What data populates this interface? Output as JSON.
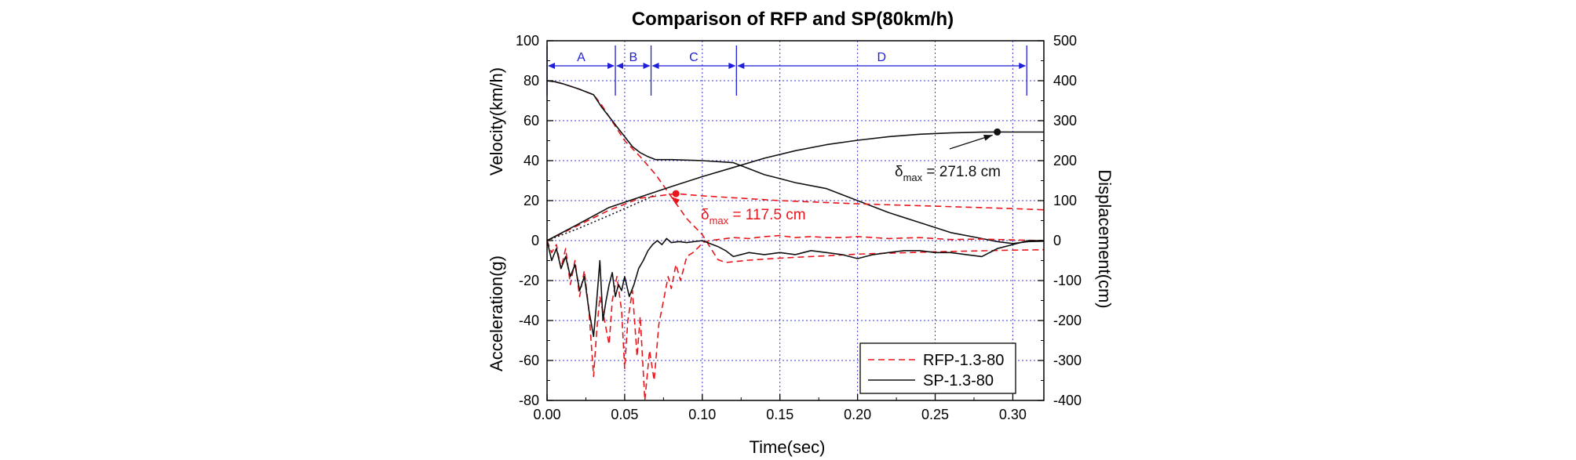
{
  "chart_data": {
    "type": "line",
    "title": "Comparison of RFP and SP(80km/h)",
    "xlabel": "Time(sec)",
    "ylabel_left_top": "Velocity(km/h)",
    "ylabel_left_bottom": "Acceleration(g)",
    "ylabel_right": "Displacement(cm)",
    "xlim": [
      0,
      0.32
    ],
    "ylim_left": [
      -80,
      100
    ],
    "ylim_right": [
      -400,
      500
    ],
    "xticks": [
      0.0,
      0.05,
      0.1,
      0.15,
      0.2,
      0.25,
      0.3
    ],
    "xtick_labels": [
      "0.00",
      "0.05",
      "0.10",
      "0.15",
      "0.20",
      "0.25",
      "0.30"
    ],
    "yticks_left": [
      100,
      80,
      60,
      40,
      20,
      0,
      -20,
      -40,
      -60,
      -80
    ],
    "ytick_labels_left": [
      "100",
      "80",
      "60",
      "40",
      "20",
      "0",
      "-20",
      "-40",
      "-60",
      "-80"
    ],
    "yticks_right": [
      500,
      400,
      300,
      200,
      100,
      0,
      -100,
      -200,
      -300,
      -400
    ],
    "ytick_labels_right": [
      "500",
      "400",
      "300",
      "200",
      "100",
      "0",
      "-100",
      "-200",
      "-300",
      "-400"
    ],
    "grid": true,
    "legend_position": "bottom-right",
    "colors": {
      "rfp": "#e8161c",
      "sp": "#111111",
      "phase": "#1f1fd8",
      "grid": "#3a3ad0"
    },
    "phases": [
      {
        "label": "A",
        "start": 0.0,
        "end": 0.044
      },
      {
        "label": "B",
        "start": 0.044,
        "end": 0.067
      },
      {
        "label": "C",
        "start": 0.067,
        "end": 0.122
      },
      {
        "label": "D",
        "start": 0.122,
        "end": 0.309
      }
    ],
    "annotations": [
      {
        "series": "SP-1.3-80",
        "delta": "δ",
        "subscript": "max",
        "text": " = 271.8 cm",
        "x": 0.29,
        "y_right": 271.8
      },
      {
        "series": "RFP-1.3-80",
        "delta": "δ",
        "subscript": "max",
        "text": " = 117.5 cm",
        "x": 0.083,
        "y_right": 117.5
      }
    ],
    "series": [
      {
        "name": "RFP-1.3-80",
        "quantity": "velocity",
        "axis": "left",
        "style": "dashed",
        "x": [
          0.0,
          0.005,
          0.01,
          0.02,
          0.03,
          0.035,
          0.04,
          0.045,
          0.05,
          0.06,
          0.07,
          0.08,
          0.09,
          0.1,
          0.11,
          0.115,
          0.13,
          0.15,
          0.18,
          0.2,
          0.25,
          0.3,
          0.32
        ],
        "y": [
          80,
          79.5,
          78.5,
          76,
          73,
          68,
          62,
          56,
          50,
          42,
          33,
          22,
          11,
          3,
          -9.5,
          -11,
          -9.8,
          -8.8,
          -7.6,
          -6.8,
          -5.6,
          -4.8,
          -4.6
        ]
      },
      {
        "name": "SP-1.3-80",
        "quantity": "velocity",
        "axis": "left",
        "style": "solid",
        "x": [
          0.0,
          0.005,
          0.01,
          0.02,
          0.03,
          0.035,
          0.04,
          0.045,
          0.05,
          0.055,
          0.06,
          0.065,
          0.07,
          0.08,
          0.1,
          0.12,
          0.13,
          0.14,
          0.15,
          0.16,
          0.18,
          0.2,
          0.22,
          0.24,
          0.26,
          0.28,
          0.29,
          0.3,
          0.31,
          0.32
        ],
        "y": [
          80,
          79.5,
          78.5,
          76,
          73,
          67,
          62,
          57,
          52,
          47,
          44,
          42,
          40.5,
          40.5,
          40,
          39,
          36,
          33,
          31,
          29,
          26,
          20,
          14,
          9,
          4,
          1,
          -0.5,
          -1.5,
          -0.5,
          -0.3
        ]
      },
      {
        "name": "RFP-1.3-80",
        "quantity": "displacement",
        "axis": "right",
        "style": "dashed",
        "x": [
          0.0,
          0.02,
          0.04,
          0.06,
          0.083,
          0.1,
          0.15,
          0.2,
          0.25,
          0.3,
          0.32
        ],
        "y": [
          0,
          38,
          76,
          106,
          117.5,
          112,
          100,
          92,
          86,
          80,
          77
        ]
      },
      {
        "name": "SP-1.3-80",
        "quantity": "displacement",
        "axis": "right",
        "style": "solid",
        "x": [
          0.0,
          0.02,
          0.04,
          0.06,
          0.08,
          0.1,
          0.12,
          0.14,
          0.16,
          0.18,
          0.2,
          0.22,
          0.24,
          0.26,
          0.28,
          0.29,
          0.3,
          0.32
        ],
        "y": [
          0,
          41,
          83,
          109,
          135,
          160,
          183,
          206,
          225,
          240,
          251,
          260,
          266,
          269.5,
          271.3,
          271.8,
          271.6,
          271.5
        ]
      },
      {
        "name": "SP-1.3-80",
        "quantity": "displacement (reference)",
        "axis": "right",
        "style": "dotted",
        "x": [
          0.0,
          0.02,
          0.04,
          0.06,
          0.07
        ],
        "y": [
          0,
          30,
          63,
          97,
          115
        ]
      },
      {
        "name": "RFP-1.3-80",
        "quantity": "acceleration",
        "axis": "left",
        "style": "dashed",
        "x": [
          0.0,
          0.003,
          0.006,
          0.009,
          0.012,
          0.015,
          0.018,
          0.021,
          0.024,
          0.027,
          0.03,
          0.032,
          0.034,
          0.037,
          0.04,
          0.042,
          0.045,
          0.048,
          0.05,
          0.052,
          0.055,
          0.058,
          0.06,
          0.063,
          0.066,
          0.069,
          0.072,
          0.075,
          0.078,
          0.08,
          0.083,
          0.086,
          0.09,
          0.094,
          0.098,
          0.1,
          0.105,
          0.11,
          0.12,
          0.13,
          0.14,
          0.15,
          0.16,
          0.17,
          0.18,
          0.19,
          0.2,
          0.22,
          0.24,
          0.26,
          0.28,
          0.3,
          0.32
        ],
        "y": [
          0,
          -6,
          -2,
          -14,
          -4,
          -22,
          -10,
          -28,
          -15,
          -35,
          -68,
          -45,
          -28,
          -40,
          -52,
          -30,
          -18,
          -35,
          -64,
          -40,
          -25,
          -58,
          -38,
          -80,
          -55,
          -70,
          -42,
          -30,
          -18,
          -24,
          -12,
          -20,
          -8,
          -6,
          -3,
          -1,
          0,
          0.5,
          1.5,
          1,
          2,
          2.5,
          1.5,
          2,
          1.5,
          1.5,
          2,
          1,
          1.5,
          0.5,
          0.8,
          0.3,
          0
        ]
      },
      {
        "name": "SP-1.3-80",
        "quantity": "acceleration",
        "axis": "left",
        "style": "solid",
        "x": [
          0.0,
          0.003,
          0.006,
          0.009,
          0.012,
          0.015,
          0.018,
          0.021,
          0.024,
          0.027,
          0.03,
          0.032,
          0.034,
          0.036,
          0.038,
          0.04,
          0.042,
          0.044,
          0.046,
          0.048,
          0.05,
          0.053,
          0.056,
          0.059,
          0.062,
          0.065,
          0.068,
          0.071,
          0.074,
          0.077,
          0.08,
          0.085,
          0.09,
          0.1,
          0.11,
          0.115,
          0.12,
          0.13,
          0.14,
          0.15,
          0.16,
          0.17,
          0.18,
          0.19,
          0.2,
          0.21,
          0.22,
          0.23,
          0.24,
          0.25,
          0.26,
          0.27,
          0.28,
          0.29,
          0.3,
          0.31,
          0.32
        ],
        "y": [
          0,
          -10,
          -4,
          -14,
          -8,
          -18,
          -12,
          -25,
          -18,
          -35,
          -48,
          -30,
          -10,
          -40,
          -30,
          -22,
          -16,
          -28,
          -22,
          -25,
          -18,
          -28,
          -22,
          -14,
          -10,
          -5,
          -2,
          0,
          -2,
          1,
          -1,
          -0.5,
          -1,
          0,
          -3,
          -5,
          -8,
          -6,
          -7,
          -6,
          -7,
          -5,
          -6,
          -7,
          -9,
          -7,
          -6,
          -5,
          -5,
          -6,
          -6,
          -7,
          -8,
          -4,
          -2,
          0,
          0
        ]
      }
    ]
  }
}
